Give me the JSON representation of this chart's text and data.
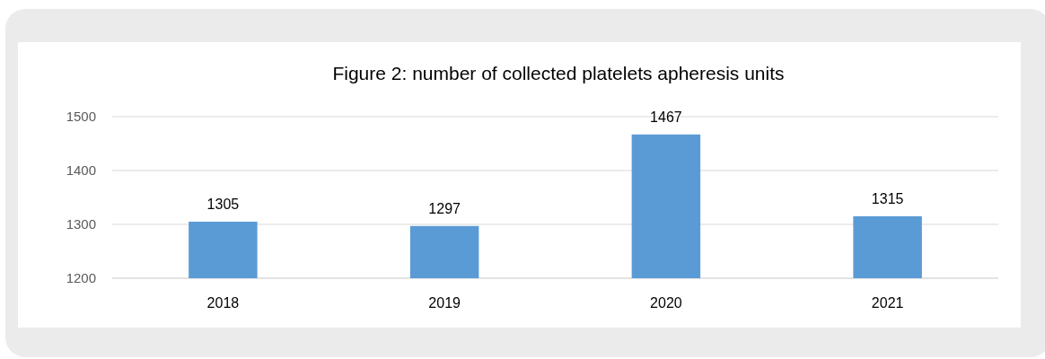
{
  "chart_data": {
    "type": "bar",
    "title": "Figure 2: number  of collected platelets apheresis units",
    "categories": [
      "2018",
      "2019",
      "2020",
      "2021"
    ],
    "values": [
      1305,
      1297,
      1467,
      1315
    ],
    "color": "#5b9bd5",
    "ylim": [
      1200,
      1500
    ],
    "yticks": [
      1200,
      1300,
      1400,
      1500
    ],
    "grid": "y",
    "data_labels": true
  }
}
